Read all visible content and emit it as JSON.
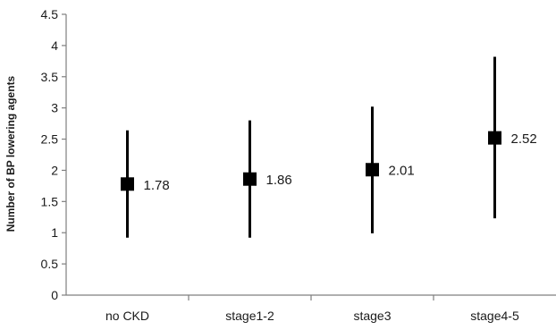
{
  "chart_data": {
    "type": "scatter",
    "title": "",
    "xlabel": "",
    "ylabel": "Number of BP lowering agents",
    "categories": [
      "no CKD",
      "stage1-2",
      "stage3",
      "stage4-5"
    ],
    "values": [
      1.78,
      1.86,
      2.01,
      2.52
    ],
    "value_labels": [
      "1.78",
      "1.86",
      "2.01",
      "2.52"
    ],
    "error_low": [
      0.92,
      0.92,
      0.99,
      1.23
    ],
    "error_high": [
      2.64,
      2.8,
      3.02,
      3.82
    ],
    "ylim": [
      0,
      4.5
    ],
    "yticks": [
      "0",
      "0.5",
      "1",
      "1.5",
      "2",
      "2.5",
      "3",
      "3.5",
      "4",
      "4.5"
    ],
    "grid": false,
    "legend": "none",
    "marker": "square",
    "colors": {
      "marker": "#000000",
      "axis": "#7f7f7f",
      "text": "#1a1a1a"
    }
  }
}
